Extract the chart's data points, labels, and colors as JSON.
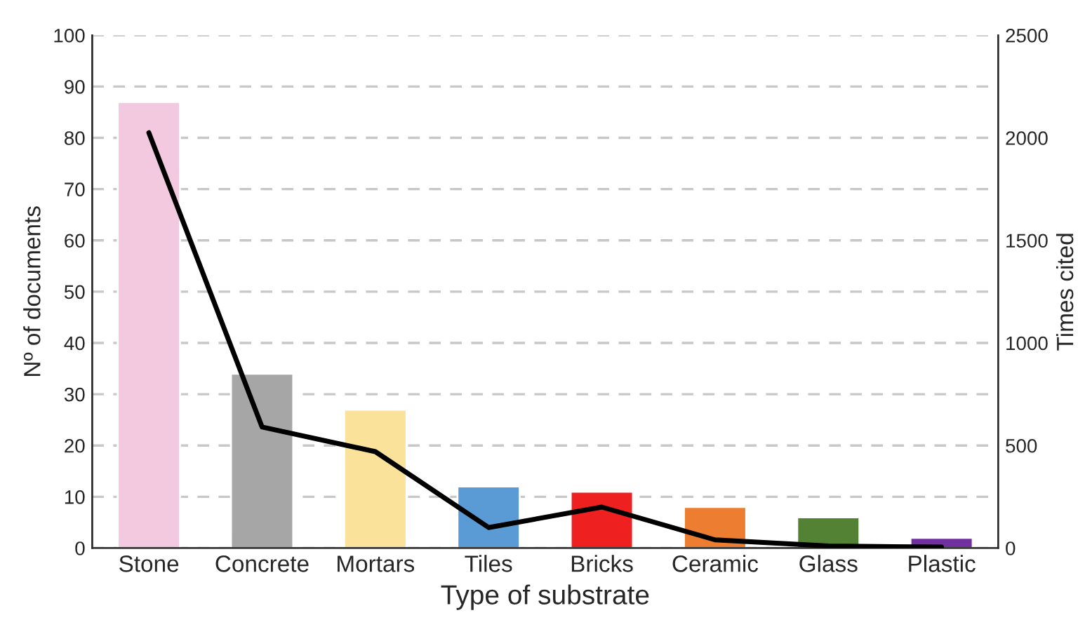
{
  "chart_data": {
    "type": "bar",
    "xlabel": "Type of substrate",
    "ylabel": "Nº of documents",
    "y2label": "Times cited",
    "categories": [
      "Stone",
      "Concrete",
      "Mortars",
      "Tiles",
      "Bricks",
      "Ceramic",
      "Glass",
      "Plastic"
    ],
    "series": [
      {
        "colors": [
          "#f2c9df",
          "#a6a6a6",
          "#fbe29a",
          "#5b9bd5",
          "#ee2020",
          "#ed7d31",
          "#548235",
          "#7030a0"
        ],
        "values": [
          87,
          34,
          27,
          12,
          11,
          8,
          6,
          2
        ]
      },
      {
        "type": "line",
        "axis": "y2",
        "color": "#000000",
        "values": [
          2025,
          590,
          470,
          100,
          200,
          40,
          10,
          5
        ]
      }
    ],
    "ylim": [
      0,
      100
    ],
    "yticks": [
      0,
      10,
      20,
      30,
      40,
      50,
      60,
      70,
      80,
      90,
      100
    ],
    "y2lim": [
      0,
      2500
    ],
    "y2ticks": [
      0,
      500,
      1000,
      1500,
      2000,
      2500
    ],
    "grid": "y",
    "legend": false,
    "marker": "none",
    "line_style": "solid"
  }
}
